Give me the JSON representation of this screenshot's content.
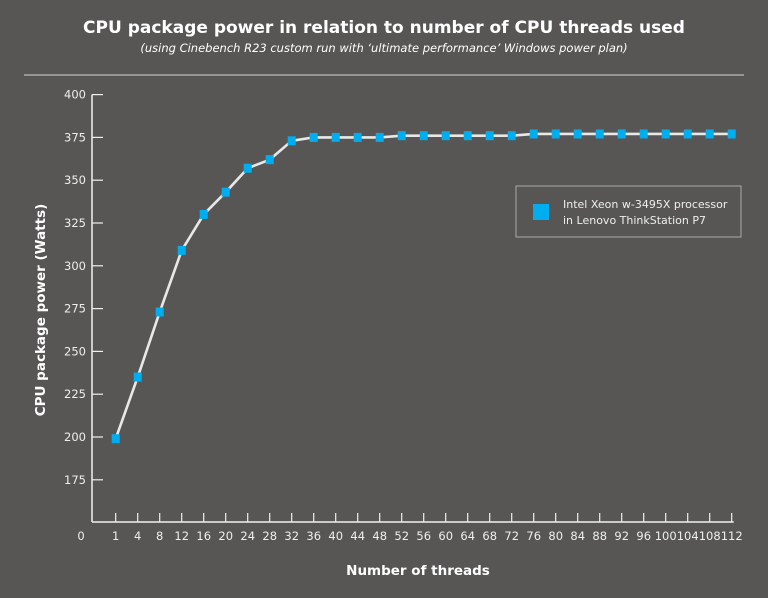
{
  "chart_data": {
    "type": "line",
    "title": "CPU package power in relation to number of CPU threads used",
    "subtitle": "(using Cinebench R23 custom run with ‘ultimate performance’ Windows power plan)",
    "xlabel": "Number of threads",
    "ylabel": "CPU package  power (Watts)",
    "x_tick_labels": [
      "0",
      "1",
      "4",
      "8",
      "12",
      "16",
      "20",
      "24",
      "28",
      "32",
      "36",
      "40",
      "44",
      "48",
      "52",
      "56",
      "60",
      "64",
      "68",
      "72",
      "76",
      "80",
      "84",
      "88",
      "92",
      "96",
      "100",
      "104",
      "108",
      "112"
    ],
    "y_ticks": [
      175,
      200,
      225,
      250,
      275,
      300,
      325,
      350,
      375,
      400
    ],
    "ylim": [
      150,
      400
    ],
    "grid": false,
    "legend_position": "right",
    "series": [
      {
        "name": "Intel Xeon w-3495X processor in Lenovo ThinkStation P7",
        "legend_lines": [
          "Intel Xeon w-3495X processor",
          "in Lenovo ThinkStation P7"
        ],
        "color": "#00aeef",
        "line_color": "#e8e8e8",
        "x": [
          1,
          4,
          8,
          12,
          16,
          20,
          24,
          28,
          32,
          36,
          40,
          44,
          48,
          52,
          56,
          60,
          64,
          68,
          72,
          76,
          80,
          84,
          88,
          92,
          96,
          100,
          104,
          108,
          112
        ],
        "values": [
          199,
          235,
          273,
          309,
          330,
          343,
          357,
          362,
          373,
          375,
          375,
          375,
          375,
          376,
          376,
          376,
          376,
          376,
          376,
          377,
          377,
          377,
          377,
          377,
          377,
          377,
          377,
          377,
          377
        ]
      }
    ]
  }
}
